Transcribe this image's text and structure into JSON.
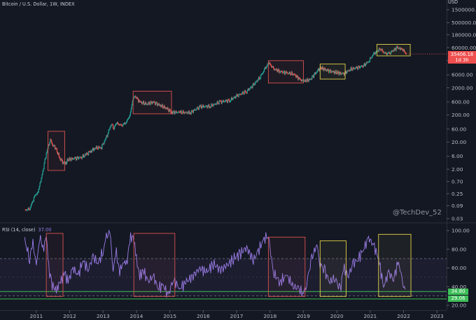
{
  "header": {
    "symbol_label": "Bitcoin / U.S. Dollar, 1W, INDEX",
    "currency_label": "USD"
  },
  "price_badge": {
    "price": "35406.18",
    "countdown": "1d 3h"
  },
  "watermark": "@TechDev_52",
  "rsi_header": {
    "label": "RSI (14, close)",
    "value": "37.00"
  },
  "rsi_badges": {
    "upper": "34.80",
    "lower": "29.06"
  },
  "colors": {
    "background": "#141823",
    "up_candle": "#26a69a",
    "down_candle": "#ef5350",
    "rsi_line": "#9b7de8",
    "red_box": "#d9534f",
    "yellow_box": "#e3d24a",
    "green_line": "#3fbf5a",
    "price_badge": "#ef4f4f"
  },
  "chart_data": [
    {
      "type": "line",
      "title": "Bitcoin / U.S. Dollar, 1W, INDEX",
      "scale": "log",
      "y_ticks": [
        "1500000.00",
        "500000.00",
        "180000.00",
        "60000.00",
        "20000.00",
        "6000.00",
        "2000.00",
        "600.00",
        "200.00",
        "60.00",
        "20.00",
        "6.00",
        "2.00",
        "0.70",
        "0.25",
        "0.09",
        "0.03"
      ],
      "x_ticks": [
        "2011",
        "2012",
        "2013",
        "2014",
        "2015",
        "2016",
        "2017",
        "2018",
        "2019",
        "2020",
        "2021",
        "2022",
        "2023"
      ],
      "series": [
        {
          "x": [
            2010.65,
            2010.8,
            2010.95,
            2011.05,
            2011.15,
            2011.3,
            2011.42,
            2011.48,
            2011.58,
            2011.7,
            2011.85,
            2011.95,
            2012.15,
            2012.35,
            2012.5,
            2012.65,
            2012.8,
            2012.95,
            2013.1,
            2013.25,
            2013.3,
            2013.4,
            2013.55,
            2013.7,
            2013.8,
            2013.9,
            2013.95,
            2014.1,
            2014.3,
            2014.5,
            2014.7,
            2014.9,
            2015.05,
            2015.3,
            2015.6,
            2015.9,
            2016.2,
            2016.5,
            2016.8,
            2017.0,
            2017.3,
            2017.5,
            2017.7,
            2017.85,
            2017.96,
            2018.1,
            2018.3,
            2018.5,
            2018.7,
            2018.9,
            2019.0,
            2019.2,
            2019.4,
            2019.5,
            2019.7,
            2019.9,
            2020.0,
            2020.2,
            2020.4,
            2020.6,
            2020.8,
            2020.95,
            2021.1,
            2021.3,
            2021.45,
            2021.6,
            2021.8,
            2021.9,
            2022.0,
            2022.08
          ],
          "values": [
            0.06,
            0.07,
            0.2,
            0.3,
            0.9,
            8,
            25,
            16,
            12,
            5,
            3,
            4.5,
            5,
            5.5,
            7,
            10,
            12,
            13,
            30,
            100,
            60,
            100,
            80,
            110,
            200,
            800,
            1000,
            600,
            500,
            600,
            450,
            350,
            250,
            250,
            240,
            400,
            420,
            600,
            700,
            1000,
            1500,
            2500,
            5000,
            10000,
            17000,
            10000,
            8000,
            7000,
            6500,
            4000,
            3500,
            4000,
            8000,
            11000,
            9000,
            7500,
            7300,
            6500,
            9500,
            11000,
            13000,
            19000,
            35000,
            55000,
            35000,
            40000,
            60000,
            57000,
            47000,
            35406
          ]
        }
      ]
    },
    {
      "type": "line",
      "title": "RSI (14, close)",
      "ylim": [
        20,
        100
      ],
      "y_ticks": [
        "100.00",
        "80.00",
        "60.00",
        "40.00",
        "20.00"
      ],
      "series": [
        {
          "name": "RSI (14, close)",
          "x": [
            2010.65,
            2010.8,
            2010.9,
            2011.0,
            2011.1,
            2011.2,
            2011.3,
            2011.4,
            2011.45,
            2011.55,
            2011.65,
            2011.75,
            2011.85,
            2011.95,
            2012.1,
            2012.25,
            2012.4,
            2012.55,
            2012.7,
            2012.85,
            2013.0,
            2013.1,
            2013.2,
            2013.3,
            2013.4,
            2013.5,
            2013.6,
            2013.7,
            2013.8,
            2013.9,
            2014.0,
            2014.1,
            2014.2,
            2014.35,
            2014.5,
            2014.65,
            2014.8,
            2014.95,
            2015.1,
            2015.3,
            2015.5,
            2015.7,
            2015.9,
            2016.1,
            2016.3,
            2016.5,
            2016.7,
            2016.9,
            2017.1,
            2017.3,
            2017.5,
            2017.65,
            2017.8,
            2017.95,
            2018.1,
            2018.3,
            2018.5,
            2018.7,
            2018.85,
            2019.0,
            2019.1,
            2019.25,
            2019.4,
            2019.5,
            2019.65,
            2019.8,
            2019.95,
            2020.1,
            2020.2,
            2020.35,
            2020.5,
            2020.65,
            2020.8,
            2020.95,
            2021.1,
            2021.25,
            2021.4,
            2021.55,
            2021.7,
            2021.85,
            2021.95,
            2022.05
          ],
          "values": [
            90,
            70,
            88,
            60,
            95,
            80,
            92,
            55,
            45,
            36,
            40,
            48,
            55,
            45,
            60,
            52,
            68,
            58,
            72,
            65,
            78,
            92,
            100,
            60,
            75,
            55,
            68,
            62,
            90,
            95,
            70,
            50,
            58,
            45,
            52,
            38,
            42,
            30,
            48,
            38,
            45,
            52,
            60,
            55,
            65,
            58,
            62,
            70,
            75,
            82,
            68,
            78,
            90,
            95,
            55,
            45,
            52,
            40,
            38,
            32,
            45,
            70,
            85,
            65,
            55,
            45,
            50,
            35,
            60,
            52,
            65,
            70,
            80,
            92,
            85,
            70,
            40,
            55,
            48,
            68,
            45,
            37
          ]
        }
      ]
    }
  ]
}
